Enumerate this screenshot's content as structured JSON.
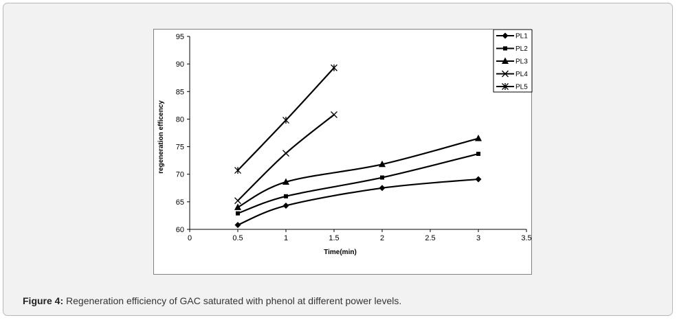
{
  "caption": {
    "label": "Figure 4:",
    "text": "Regeneration efficiency of GAC saturated with phenol at different power levels."
  },
  "chart_data": {
    "type": "line",
    "title": "",
    "xlabel": "Time(min)",
    "ylabel": "regeneration efficency",
    "xlim": [
      0,
      3.5
    ],
    "ylim": [
      60,
      95
    ],
    "x_ticks": [
      "0",
      "0.5",
      "1",
      "1.5",
      "2",
      "2.5",
      "3",
      "3.5"
    ],
    "y_ticks": [
      "60",
      "65",
      "70",
      "75",
      "80",
      "85",
      "90",
      "95"
    ],
    "grid": false,
    "legend_position": "top-right",
    "series": [
      {
        "name": "PL1",
        "marker": "diamond",
        "x": [
          0.5,
          1,
          2,
          3
        ],
        "y": [
          60.8,
          64.3,
          67.5,
          69.1
        ]
      },
      {
        "name": "PL2",
        "marker": "square",
        "x": [
          0.5,
          1,
          2,
          3
        ],
        "y": [
          62.9,
          66.0,
          69.4,
          73.7
        ]
      },
      {
        "name": "PL3",
        "marker": "triangle",
        "x": [
          0.5,
          1,
          2,
          3
        ],
        "y": [
          64.0,
          68.6,
          71.8,
          76.5
        ]
      },
      {
        "name": "PL4",
        "marker": "x",
        "x": [
          0.5,
          1,
          1.5
        ],
        "y": [
          65.2,
          73.8,
          80.8
        ]
      },
      {
        "name": "PL5",
        "marker": "star",
        "x": [
          0.5,
          1,
          1.5
        ],
        "y": [
          70.7,
          79.8,
          89.3
        ]
      }
    ]
  }
}
